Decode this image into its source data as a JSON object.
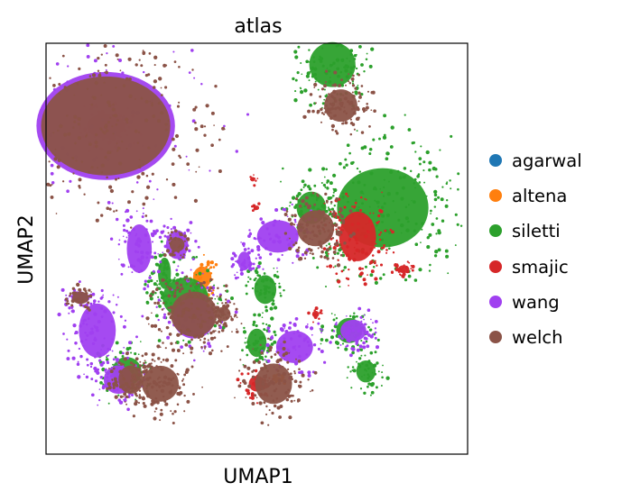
{
  "chart_data": {
    "type": "scatter",
    "title": "atlas",
    "xlabel": "UMAP1",
    "ylabel": "UMAP2",
    "grid": false,
    "ticks": "none",
    "legend_placement": "right",
    "xlim": [
      0,
      100
    ],
    "ylim": [
      0,
      100
    ],
    "series": [
      {
        "name": "agarwal",
        "color": "#1f77b4",
        "regions": []
      },
      {
        "name": "altena",
        "color": "#ff7f0e",
        "regions": [
          [
            14,
            80,
            9,
            6,
            0.9,
            80
          ],
          [
            37,
            43,
            5,
            6,
            0.8,
            40
          ],
          [
            55,
            18,
            3,
            2,
            0.6,
            20
          ]
        ]
      },
      {
        "name": "siletti",
        "color": "#2ca02c",
        "regions": [
          [
            68,
            95,
            10,
            10,
            1.0,
            140
          ],
          [
            80,
            60,
            18,
            16,
            1.1,
            260
          ],
          [
            33,
            38,
            11,
            10,
            0.9,
            90
          ],
          [
            52,
            40,
            6,
            8,
            0.8,
            60
          ],
          [
            72,
            30,
            8,
            8,
            0.7,
            60
          ],
          [
            76,
            20,
            6,
            7,
            0.7,
            50
          ],
          [
            50,
            27,
            6,
            9,
            0.7,
            60
          ],
          [
            19,
            20,
            8,
            8,
            0.8,
            70
          ],
          [
            28,
            44,
            4,
            10,
            0.7,
            50
          ],
          [
            63,
            60,
            8,
            9,
            0.8,
            60
          ]
        ]
      },
      {
        "name": "smajic",
        "color": "#d62728",
        "regions": [
          [
            74,
            53,
            8,
            11,
            1.0,
            130
          ],
          [
            50,
            17,
            5,
            5,
            0.7,
            50
          ],
          [
            85,
            45,
            4,
            3,
            0.6,
            30
          ],
          [
            64,
            34,
            3,
            3,
            0.5,
            15
          ],
          [
            50,
            60,
            2,
            2,
            0.5,
            8
          ],
          [
            49,
            67,
            2,
            2,
            0.5,
            8
          ]
        ]
      },
      {
        "name": "wang",
        "color": "#a040f0",
        "regions": [
          [
            14,
            80,
            30,
            24,
            1.0,
            80
          ],
          [
            12,
            30,
            8,
            12,
            1.0,
            90
          ],
          [
            17,
            18,
            7,
            7,
            0.9,
            70
          ],
          [
            35,
            33,
            10,
            10,
            0.9,
            60
          ],
          [
            59,
            26,
            10,
            9,
            0.8,
            70
          ],
          [
            73,
            30,
            7,
            6,
            0.8,
            60
          ],
          [
            55,
            53,
            10,
            8,
            0.9,
            70
          ],
          [
            22,
            50,
            6,
            12,
            0.9,
            70
          ],
          [
            31,
            51,
            6,
            8,
            0.8,
            50
          ],
          [
            47,
            47,
            4,
            6,
            0.7,
            40
          ],
          [
            8,
            38,
            5,
            3,
            0.8,
            30
          ]
        ]
      },
      {
        "name": "welch",
        "color": "#8b5347",
        "regions": [
          [
            14,
            80,
            28,
            22,
            1.0,
            260
          ],
          [
            35,
            34,
            10,
            10,
            1.0,
            160
          ],
          [
            27,
            17,
            8,
            8,
            1.0,
            120
          ],
          [
            20,
            18,
            6,
            7,
            0.9,
            80
          ],
          [
            54,
            17,
            8,
            9,
            1.0,
            120
          ],
          [
            64,
            55,
            8,
            8,
            1.0,
            110
          ],
          [
            70,
            85,
            8,
            8,
            0.9,
            120
          ],
          [
            8,
            38,
            4,
            3,
            0.9,
            40
          ],
          [
            31,
            51,
            4,
            4,
            0.8,
            40
          ],
          [
            42,
            34,
            4,
            4,
            0.8,
            40
          ]
        ]
      }
    ]
  },
  "legend": [
    {
      "label": "agarwal",
      "color": "#1f77b4"
    },
    {
      "label": "altena",
      "color": "#ff7f0e"
    },
    {
      "label": "siletti",
      "color": "#2ca02c"
    },
    {
      "label": "smajic",
      "color": "#d62728"
    },
    {
      "label": "wang",
      "color": "#a040f0"
    },
    {
      "label": "welch",
      "color": "#8b5347"
    }
  ]
}
